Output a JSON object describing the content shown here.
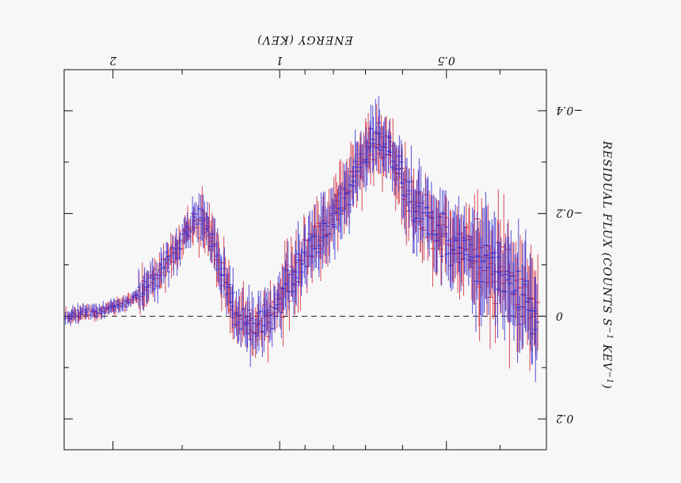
{
  "chart_data": {
    "type": "scatter",
    "orientation": "rotated-180",
    "xlabel": "ENERGY (KEV)",
    "ylabel": "RESIDUAL FLUX (COUNTS S",
    "ylabel_sup1": "−1",
    "ylabel_mid": " KEV",
    "ylabel_sup2": "−1",
    "ylabel_end": ")",
    "xscale": "log",
    "xlim": [
      0.33,
      2.45
    ],
    "ylim": [
      -0.48,
      0.26
    ],
    "x_ticks": [
      {
        "value": 0.5,
        "label": "0.5"
      },
      {
        "value": 1,
        "label": "1"
      },
      {
        "value": 2,
        "label": "2"
      }
    ],
    "x_minor_ticks": [
      0.4,
      0.6,
      0.7,
      0.8,
      0.9,
      1.5
    ],
    "y_ticks": [
      {
        "value": -0.4,
        "label": "−0.4"
      },
      {
        "value": -0.2,
        "label": "−0.2"
      },
      {
        "value": 0,
        "label": "0"
      },
      {
        "value": 0.2,
        "label": "0.2"
      }
    ],
    "y_minor_ticks": [
      -0.3,
      -0.1,
      0.1
    ],
    "zero_line": "dashed",
    "grid": false,
    "series": [
      {
        "color": "#d42a3a",
        "role": "residuals-1"
      },
      {
        "color": "#3a2fd2",
        "role": "residuals-2"
      }
    ],
    "profile": [
      [
        0.34,
        -0.02
      ],
      [
        0.37,
        -0.05
      ],
      [
        0.4,
        -0.09
      ],
      [
        0.44,
        -0.12
      ],
      [
        0.48,
        -0.14
      ],
      [
        0.52,
        -0.16
      ],
      [
        0.56,
        -0.2
      ],
      [
        0.6,
        -0.27
      ],
      [
        0.64,
        -0.32
      ],
      [
        0.67,
        -0.35
      ],
      [
        0.7,
        -0.31
      ],
      [
        0.74,
        -0.26
      ],
      [
        0.8,
        -0.2
      ],
      [
        0.88,
        -0.13
      ],
      [
        0.96,
        -0.06
      ],
      [
        1.04,
        0.0
      ],
      [
        1.12,
        0.02
      ],
      [
        1.2,
        0.0
      ],
      [
        1.3,
        -0.12
      ],
      [
        1.36,
        -0.18
      ],
      [
        1.42,
        -0.19
      ],
      [
        1.52,
        -0.14
      ],
      [
        1.65,
        -0.08
      ],
      [
        1.85,
        -0.03
      ],
      [
        2.1,
        -0.01
      ],
      [
        2.45,
        0.0
      ]
    ]
  }
}
